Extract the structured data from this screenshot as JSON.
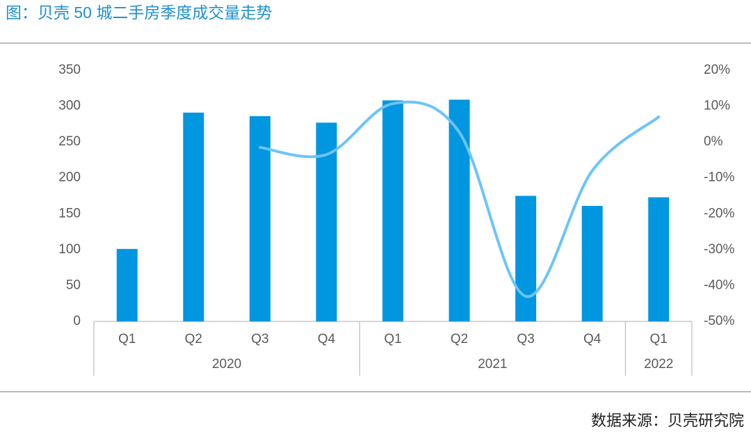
{
  "chart_data": {
    "type": "bar",
    "title": "图：贝壳 50 城二手房季度成交量走势",
    "source": "数据来源：贝壳研究院",
    "groups": [
      {
        "label": "2020",
        "categories": [
          "Q1",
          "Q2",
          "Q3",
          "Q4"
        ]
      },
      {
        "label": "2021",
        "categories": [
          "Q1",
          "Q2",
          "Q3",
          "Q4"
        ]
      },
      {
        "label": "2022",
        "categories": [
          "Q1"
        ]
      }
    ],
    "series": [
      {
        "type": "bar",
        "color": "#0096e0",
        "values": [
          101,
          291,
          286,
          277,
          308,
          309,
          175,
          161,
          173
        ]
      },
      {
        "type": "line",
        "axis": "y2",
        "color": "#6cc4fa",
        "values": [
          null,
          null,
          -1.5,
          -3.5,
          10.7,
          2.7,
          -43,
          -8,
          7
        ]
      }
    ],
    "ylim": [
      0,
      350
    ],
    "yticks": [
      0,
      50,
      100,
      150,
      200,
      250,
      300,
      350
    ],
    "y2lim": [
      -50,
      20
    ],
    "y2ticks": [
      {
        "value": -50,
        "label": "-50%"
      },
      {
        "value": -40,
        "label": "-40%"
      },
      {
        "value": -30,
        "label": "-30%"
      },
      {
        "value": -20,
        "label": "-20%"
      },
      {
        "value": -10,
        "label": "-10%"
      },
      {
        "value": 0,
        "label": "0%"
      },
      {
        "value": 10,
        "label": "10%"
      },
      {
        "value": 20,
        "label": "20%"
      }
    ]
  }
}
